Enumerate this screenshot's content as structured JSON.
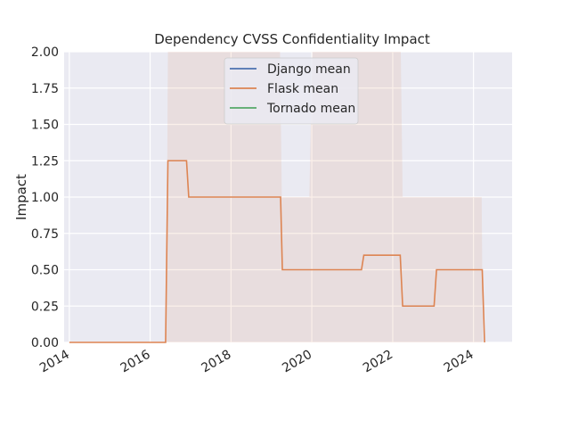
{
  "chart_data": {
    "type": "line",
    "title": "Dependency CVSS Confidentiality Impact",
    "xlabel": "",
    "ylabel": "Impact",
    "xlim": [
      "2013-11-15",
      "2024-12-15"
    ],
    "ylim": [
      0,
      2.0
    ],
    "grid": true,
    "legend_position": "top-center",
    "x_ticks": [
      "2014",
      "2016",
      "2018",
      "2020",
      "2022",
      "2024"
    ],
    "x_tick_values": [
      "2014-01-01",
      "2016-01-01",
      "2018-01-01",
      "2020-01-01",
      "2022-01-01",
      "2024-01-01"
    ],
    "y_ticks": [
      "0.00",
      "0.25",
      "0.50",
      "0.75",
      "1.00",
      "1.25",
      "1.50",
      "1.75",
      "2.00"
    ],
    "y_tick_values": [
      0,
      0.25,
      0.5,
      0.75,
      1.0,
      1.25,
      1.5,
      1.75,
      2.0
    ],
    "colors": {
      "background": "#eaeaf2",
      "grid": "#ffffff",
      "django": "#4c72b0",
      "flask": "#dd8452",
      "tornado": "#55a868",
      "band": "#dd8452"
    },
    "series": [
      {
        "name": "Django mean",
        "color": "#4c72b0",
        "points": []
      },
      {
        "name": "Flask mean",
        "color": "#dd8452",
        "points": [
          [
            "2014-01-01",
            0
          ],
          [
            "2016-05-20",
            0
          ],
          [
            "2016-06-10",
            1.25
          ],
          [
            "2016-11-25",
            1.25
          ],
          [
            "2016-12-15",
            1.0
          ],
          [
            "2019-03-25",
            1.0
          ],
          [
            "2019-04-10",
            0.5
          ],
          [
            "2021-03-25",
            0.5
          ],
          [
            "2021-04-15",
            0.6
          ],
          [
            "2022-03-10",
            0.6
          ],
          [
            "2022-04-01",
            0.25
          ],
          [
            "2023-01-10",
            0.25
          ],
          [
            "2023-02-01",
            0.5
          ],
          [
            "2024-03-20",
            0.5
          ],
          [
            "2024-04-10",
            0
          ]
        ]
      },
      {
        "name": "Tornado mean",
        "color": "#55a868",
        "points": []
      }
    ],
    "confidence_band": [
      [
        "2014-01-01",
        0,
        0
      ],
      [
        "2016-05-25",
        0,
        0
      ],
      [
        "2016-06-10",
        0,
        2.0
      ],
      [
        "2019-03-20",
        0,
        2.0
      ],
      [
        "2019-04-05",
        0,
        1.0
      ],
      [
        "2019-12-10",
        0,
        1.0
      ],
      [
        "2020-01-05",
        0,
        2.0
      ],
      [
        "2022-03-15",
        0,
        2.0
      ],
      [
        "2022-04-01",
        0,
        1.0
      ],
      [
        "2024-03-15",
        0,
        1.0
      ],
      [
        "2024-03-25",
        0,
        0
      ]
    ]
  }
}
